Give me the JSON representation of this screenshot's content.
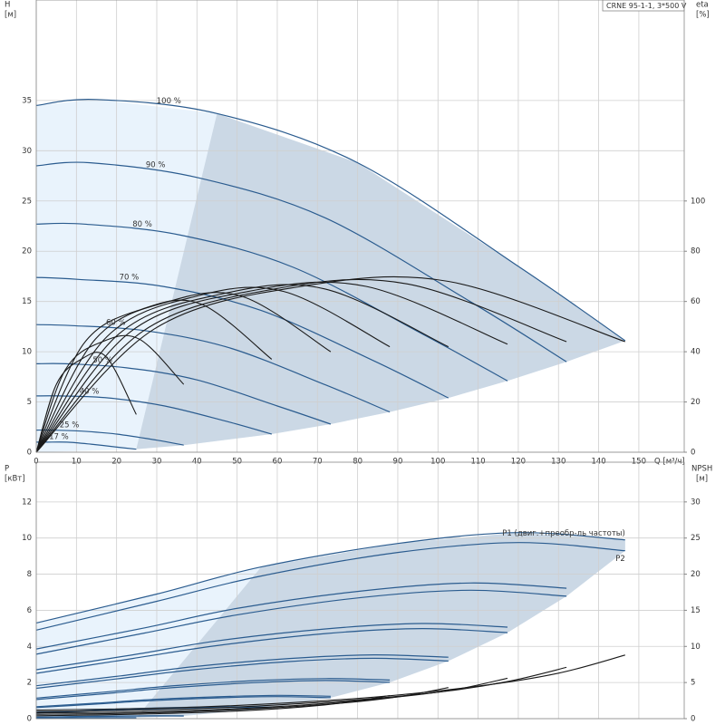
{
  "chart_data": [
    {
      "type": "line",
      "title": "CRNE 95-1-1, 3*500 V",
      "y_label": "H",
      "y_unit": "[м]",
      "y2_label": "eta",
      "y2_unit": "[%]",
      "x_label": "Q [м³/ч]",
      "xlim": [
        0,
        161.3
      ],
      "xticks": [
        0,
        10,
        20,
        30,
        40,
        50,
        60,
        70,
        80,
        90,
        100,
        110,
        120,
        130,
        140,
        150
      ],
      "ylim": [
        0,
        45
      ],
      "yticks": [
        0,
        5,
        10,
        15,
        20,
        25,
        30,
        35
      ],
      "y2lim": [
        0,
        180
      ],
      "y2ticks": [
        0,
        20,
        40,
        60,
        80,
        100
      ],
      "grid": true,
      "series": [
        {
          "name": "100 %",
          "color": "#2b5c8f",
          "x": [
            0,
            15,
            45,
            80,
            120,
            146.6
          ],
          "values": [
            34.5,
            35.1,
            33.7,
            28.8,
            18.5,
            11.1
          ]
        },
        {
          "name": "90 %",
          "color": "#2b5c8f",
          "x": [
            0,
            13.5,
            40.5,
            72,
            108,
            132
          ],
          "values": [
            28.5,
            28.8,
            27.3,
            23.3,
            15.0,
            9.0
          ]
        },
        {
          "name": "80 %",
          "color": "#2b5c8f",
          "x": [
            0,
            12,
            36,
            64,
            96,
            117.3
          ],
          "values": [
            22.7,
            22.7,
            21.6,
            18.4,
            11.8,
            7.1
          ]
        },
        {
          "name": "70 %",
          "color": "#2b5c8f",
          "x": [
            0,
            10.5,
            31.5,
            56,
            84,
            102.6
          ],
          "values": [
            17.4,
            17.2,
            16.5,
            14.1,
            9.1,
            5.4
          ]
        },
        {
          "name": "60 %",
          "color": "#2b5c8f",
          "x": [
            0,
            9,
            27,
            48,
            72,
            88
          ],
          "values": [
            12.7,
            12.6,
            12.1,
            10.4,
            6.7,
            4.0
          ]
        },
        {
          "name": "50 %",
          "color": "#2b5c8f",
          "x": [
            0,
            7.5,
            22.5,
            40,
            60,
            73.3
          ],
          "values": [
            8.8,
            8.8,
            8.4,
            7.2,
            4.6,
            2.8
          ]
        },
        {
          "name": "40 %",
          "color": "#2b5c8f",
          "x": [
            0,
            6,
            18,
            32,
            48,
            58.6
          ],
          "values": [
            5.6,
            5.6,
            5.4,
            4.6,
            3.0,
            1.8
          ]
        },
        {
          "name": "25 %",
          "color": "#2b5c8f",
          "x": [
            0,
            3.75,
            11.25,
            20,
            30,
            36.7
          ],
          "values": [
            2.2,
            2.2,
            2.1,
            1.8,
            1.2,
            0.7
          ]
        },
        {
          "name": "17 %",
          "color": "#2b5c8f",
          "x": [
            0,
            2.55,
            7.65,
            13.6,
            20.4,
            24.9
          ],
          "values": [
            1.0,
            1.0,
            1.0,
            0.8,
            0.5,
            0.3
          ]
        },
        {
          "axis": "y2",
          "color": "#1a1a1a",
          "x": [
            0,
            29.3,
            66,
            102.6,
            146.6
          ],
          "values": [
            0,
            49,
            66,
            68,
            44
          ]
        },
        {
          "axis": "y2",
          "color": "#1a1a1a",
          "x": [
            0,
            26.4,
            59.4,
            92.4,
            132
          ],
          "values": [
            0,
            48,
            65,
            67,
            44
          ]
        },
        {
          "axis": "y2",
          "color": "#1a1a1a",
          "x": [
            0,
            23.5,
            52.8,
            82.1,
            117.3
          ],
          "values": [
            0,
            48,
            64,
            66,
            43
          ]
        },
        {
          "axis": "y2",
          "color": "#1a1a1a",
          "x": [
            0,
            20.5,
            46.2,
            71.8,
            102.6
          ],
          "values": [
            0,
            47,
            63,
            65,
            42
          ]
        },
        {
          "axis": "y2",
          "color": "#1a1a1a",
          "x": [
            0,
            17.6,
            39.6,
            61.6,
            88
          ],
          "values": [
            0,
            46,
            62,
            64,
            42
          ]
        },
        {
          "axis": "y2",
          "color": "#1a1a1a",
          "x": [
            0,
            14.7,
            33,
            51.3,
            73.3
          ],
          "values": [
            0,
            45,
            60,
            62,
            40
          ]
        },
        {
          "axis": "y2",
          "color": "#1a1a1a",
          "x": [
            0,
            11.7,
            26.4,
            41,
            58.6
          ],
          "values": [
            0,
            43,
            57,
            59,
            37
          ]
        },
        {
          "axis": "y2",
          "color": "#1a1a1a",
          "x": [
            0,
            7.3,
            16.5,
            25.7,
            36.7
          ],
          "values": [
            0,
            33,
            44,
            45,
            27
          ]
        },
        {
          "axis": "y2",
          "color": "#1a1a1a",
          "x": [
            0,
            5,
            11.2,
            17.4,
            24.9
          ],
          "values": [
            0,
            27,
            37,
            38,
            15
          ]
        }
      ]
    },
    {
      "type": "line",
      "y_label": "P",
      "y_unit": "[кВт]",
      "y2_label": "NPSH",
      "y2_unit": "[м]",
      "xlim": [
        0,
        161.3
      ],
      "xticks": [
        0,
        10,
        20,
        30,
        40,
        50,
        60,
        70,
        80,
        90,
        100,
        110,
        120,
        130,
        140,
        150
      ],
      "ylim": [
        0,
        14.2
      ],
      "yticks": [
        0,
        2,
        4,
        6,
        8,
        10,
        12
      ],
      "y2lim": [
        0,
        35.5
      ],
      "y2ticks": [
        0,
        5,
        10,
        15,
        20,
        25,
        30
      ],
      "grid": true,
      "series": [
        {
          "name": "P1 (двиг.+преобр-ль частоты)",
          "color": "#2b5c8f",
          "x": [
            0,
            30,
            56,
            90,
            120,
            146.6
          ],
          "values": [
            5.3,
            6.9,
            8.4,
            9.7,
            10.3,
            9.9
          ]
        },
        {
          "color": "#2b5c8f",
          "x": [
            0,
            27,
            50.4,
            81,
            108,
            132
          ],
          "values": [
            3.86,
            5.03,
            6.12,
            7.07,
            7.51,
            7.22
          ]
        },
        {
          "color": "#2b5c8f",
          "x": [
            0,
            24,
            44.8,
            72,
            96,
            117.3
          ],
          "values": [
            2.71,
            3.53,
            4.3,
            4.97,
            5.27,
            5.07
          ]
        },
        {
          "color": "#2b5c8f",
          "x": [
            0,
            21,
            39.2,
            63,
            84,
            102.6
          ],
          "values": [
            1.82,
            2.37,
            2.88,
            3.33,
            3.53,
            3.4
          ]
        },
        {
          "color": "#2b5c8f",
          "x": [
            0,
            18,
            33.6,
            54,
            72,
            88
          ],
          "values": [
            1.14,
            1.49,
            1.81,
            2.1,
            2.22,
            2.14
          ]
        },
        {
          "color": "#2b5c8f",
          "x": [
            0,
            15,
            28,
            45,
            60,
            73.3
          ],
          "values": [
            0.66,
            0.86,
            1.05,
            1.21,
            1.29,
            1.24
          ]
        },
        {
          "color": "#2b5c8f",
          "x": [
            0,
            12,
            22.4,
            36,
            48,
            58.6
          ],
          "values": [
            0.34,
            0.44,
            0.54,
            0.62,
            0.66,
            0.63
          ]
        },
        {
          "color": "#2b5c8f",
          "x": [
            0,
            7.5,
            14,
            22.5,
            30,
            36.7
          ],
          "values": [
            0.08,
            0.11,
            0.13,
            0.15,
            0.16,
            0.15
          ]
        },
        {
          "color": "#2b5c8f",
          "x": [
            0,
            5.1,
            9.5,
            15.3,
            20.4,
            24.9
          ],
          "values": [
            0.03,
            0.03,
            0.04,
            0.05,
            0.05,
            0.05
          ]
        },
        {
          "name": "P2",
          "color": "#2b5c8f",
          "x": [
            0,
            30,
            56,
            90,
            120,
            146.6
          ],
          "values": [
            4.9,
            6.5,
            7.9,
            9.2,
            9.75,
            9.3
          ]
        },
        {
          "color": "#2b5c8f",
          "x": [
            0,
            27,
            50.4,
            81,
            108,
            132
          ],
          "values": [
            3.57,
            4.74,
            5.76,
            6.71,
            7.11,
            6.78
          ]
        },
        {
          "color": "#2b5c8f",
          "x": [
            0,
            24,
            44.8,
            72,
            96,
            117.3
          ],
          "values": [
            2.51,
            3.33,
            4.04,
            4.71,
            4.99,
            4.76
          ]
        },
        {
          "color": "#2b5c8f",
          "x": [
            0,
            21,
            39.2,
            63,
            84,
            102.6
          ],
          "values": [
            1.68,
            2.23,
            2.71,
            3.16,
            3.34,
            3.19
          ]
        },
        {
          "color": "#2b5c8f",
          "x": [
            0,
            18,
            33.6,
            54,
            72,
            88
          ],
          "values": [
            1.06,
            1.4,
            1.71,
            1.99,
            2.11,
            2.01
          ]
        },
        {
          "color": "#2b5c8f",
          "x": [
            0,
            15,
            28,
            45,
            60,
            73.3
          ],
          "values": [
            0.61,
            0.81,
            0.99,
            1.15,
            1.22,
            1.16
          ]
        },
        {
          "color": "#2b5c8f",
          "x": [
            0,
            12,
            22.4,
            36,
            48,
            58.6
          ],
          "values": [
            0.31,
            0.42,
            0.51,
            0.59,
            0.62,
            0.6
          ]
        },
        {
          "color": "#2b5c8f",
          "x": [
            0,
            7.5,
            14,
            22.5,
            30,
            36.7
          ],
          "values": [
            0.08,
            0.1,
            0.12,
            0.14,
            0.15,
            0.15
          ]
        },
        {
          "color": "#2b5c8f",
          "x": [
            0,
            5.1,
            9.5,
            15.3,
            20.4,
            24.9
          ],
          "values": [
            0.02,
            0.03,
            0.04,
            0.05,
            0.05,
            0.05
          ]
        },
        {
          "axis": "y2",
          "color": "#1a1a1a",
          "x": [
            0,
            40,
            80,
            110,
            130,
            146.6
          ],
          "values": [
            1.2,
            1.6,
            2.8,
            4.5,
            6.3,
            8.8
          ]
        },
        {
          "axis": "y2",
          "color": "#1a1a1a",
          "x": [
            0,
            36,
            72,
            99,
            117,
            132
          ],
          "values": [
            1.0,
            1.3,
            2.3,
            3.6,
            5.1,
            7.1
          ]
        },
        {
          "axis": "y2",
          "color": "#1a1a1a",
          "x": [
            0,
            32,
            64,
            88,
            104,
            117.3
          ],
          "values": [
            0.8,
            1.0,
            1.8,
            2.9,
            4.0,
            5.6
          ]
        },
        {
          "axis": "y2",
          "color": "#1a1a1a",
          "x": [
            0,
            28,
            56,
            77,
            91,
            102.6
          ],
          "values": [
            0.6,
            0.8,
            1.4,
            2.2,
            3.1,
            4.3
          ]
        },
        {
          "axis": "y2",
          "color": "#1a1a1a",
          "x": [
            0,
            24,
            48,
            66,
            78,
            88
          ],
          "values": [
            0.4,
            0.6,
            1.0,
            1.6,
            2.3,
            3.2
          ]
        }
      ]
    }
  ]
}
